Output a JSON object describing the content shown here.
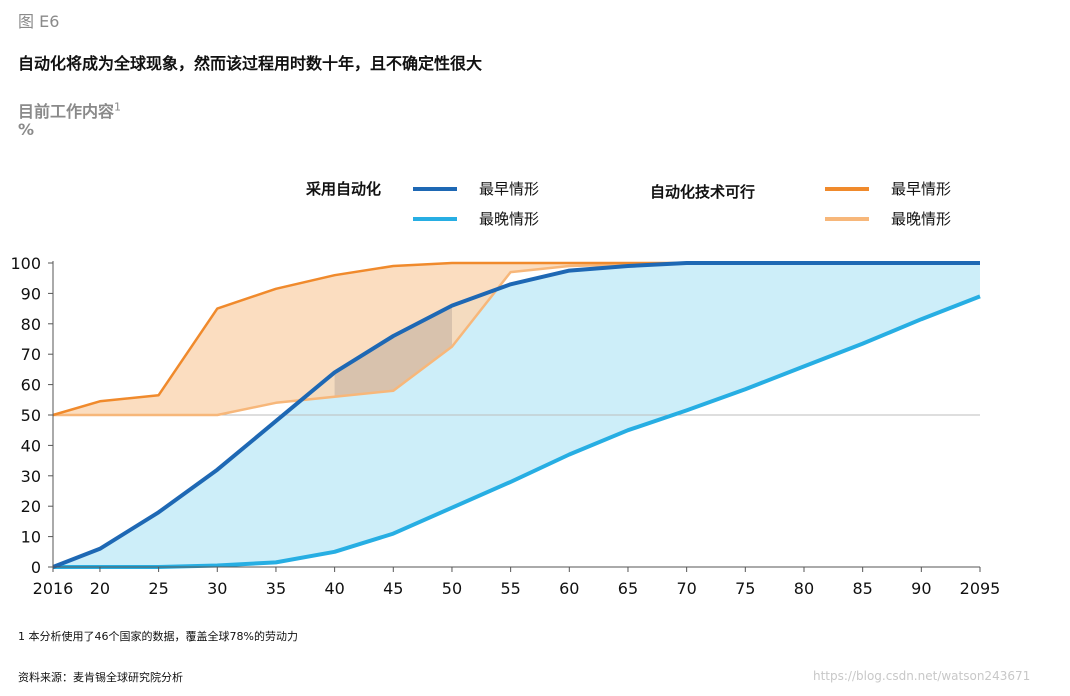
{
  "figure_label": "图 E6",
  "title": "自动化将成为全球现象，然而该过程用时数十年，且不确定性很大",
  "ylabel": "目前工作内容",
  "ylabel_sup": "1",
  "yunit": "%",
  "legend": {
    "group_adoption": "采用自动化",
    "group_tech": "自动化技术可行",
    "earliest": "最早情形",
    "latest": "最晚情形",
    "earliest_tech": "最早情形",
    "latest_tech": "最晚情形"
  },
  "footnote": "1 本分析使用了46个国家的数据，覆盖全球78%的劳动力",
  "source": "资料来源：麦肯锡全球研究院分析",
  "watermark": "https://blog.csdn.net/watson243671",
  "colors": {
    "adopt_early": "#1e68b4",
    "adopt_late": "#27aee3",
    "adopt_fill": "#cdeef9",
    "tech_early": "#f08a2c",
    "tech_late": "#f7b77a",
    "tech_fill": "#fad7b5",
    "overlap_fill": "#d8c2ad",
    "axis": "#555555",
    "refline": "#bdbdbd"
  },
  "chart_data": {
    "type": "area",
    "x": [
      2016,
      2020,
      2025,
      2030,
      2035,
      2040,
      2045,
      2050,
      2055,
      2060,
      2065,
      2070,
      2075,
      2080,
      2085,
      2090,
      2095
    ],
    "x_tick_labels": [
      "2016",
      "20",
      "25",
      "30",
      "35",
      "40",
      "45",
      "50",
      "55",
      "60",
      "65",
      "70",
      "75",
      "80",
      "85",
      "90",
      "2095"
    ],
    "ylim": [
      0,
      100
    ],
    "y_ticks": [
      0,
      10,
      20,
      30,
      40,
      50,
      60,
      70,
      80,
      90,
      100
    ],
    "reference_line": 50,
    "series": [
      {
        "name": "采用自动化 最早情形",
        "values": [
          0,
          6,
          18,
          32,
          48,
          64,
          76,
          86,
          93,
          97.5,
          99,
          100,
          100,
          100,
          100,
          100,
          100
        ]
      },
      {
        "name": "采用自动化 最晚情形",
        "values": [
          0,
          0,
          0,
          0.5,
          1.5,
          5,
          11,
          19.5,
          28,
          37,
          45,
          51.5,
          58.5,
          66,
          73.5,
          81.5,
          89
        ]
      },
      {
        "name": "自动化技术可行 最早情形",
        "values": [
          50,
          54.5,
          56.5,
          85,
          91.5,
          96,
          99,
          100,
          100,
          100,
          100,
          100,
          100,
          100,
          100,
          100,
          100
        ]
      },
      {
        "name": "自动化技术可行 最晚情形",
        "values": [
          50,
          50,
          50,
          50,
          54,
          56,
          58,
          72.5,
          97,
          99,
          99.5,
          100,
          100,
          100,
          100,
          100,
          100
        ]
      }
    ]
  }
}
